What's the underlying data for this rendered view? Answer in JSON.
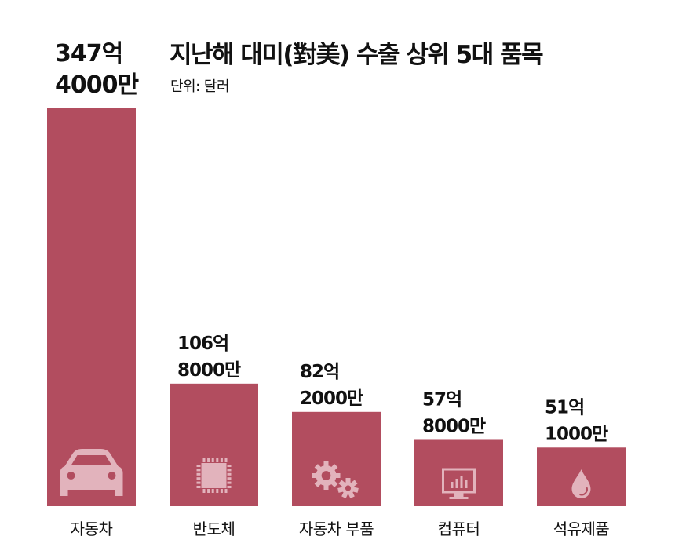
{
  "title": "지난해 대미(對美) 수출 상위 5대 품목",
  "subtitle": "단위: 달러",
  "colors": {
    "bar": "#b24d5f",
    "icon": "#e2b3bc"
  },
  "chart_data": {
    "type": "bar",
    "title": "지난해 대미(對美) 수출 상위 5대 품목",
    "unit": "달러",
    "categories": [
      "자동차",
      "반도체",
      "자동차 부품",
      "컴퓨터",
      "석유제품"
    ],
    "values": [
      34740000000,
      10680000000,
      8220000000,
      5780000000,
      5110000000
    ],
    "value_labels": [
      [
        "347억",
        "4000만"
      ],
      [
        "106억",
        "8000만"
      ],
      [
        "82억",
        "2000만"
      ],
      [
        "57억",
        "8000만"
      ],
      [
        "51억",
        "1000만"
      ]
    ],
    "icons": [
      "car-icon",
      "chip-icon",
      "gears-icon",
      "monitor-icon",
      "drop-icon"
    ],
    "ylim": [
      0,
      34740000000
    ],
    "grid": false,
    "legend": "none"
  }
}
